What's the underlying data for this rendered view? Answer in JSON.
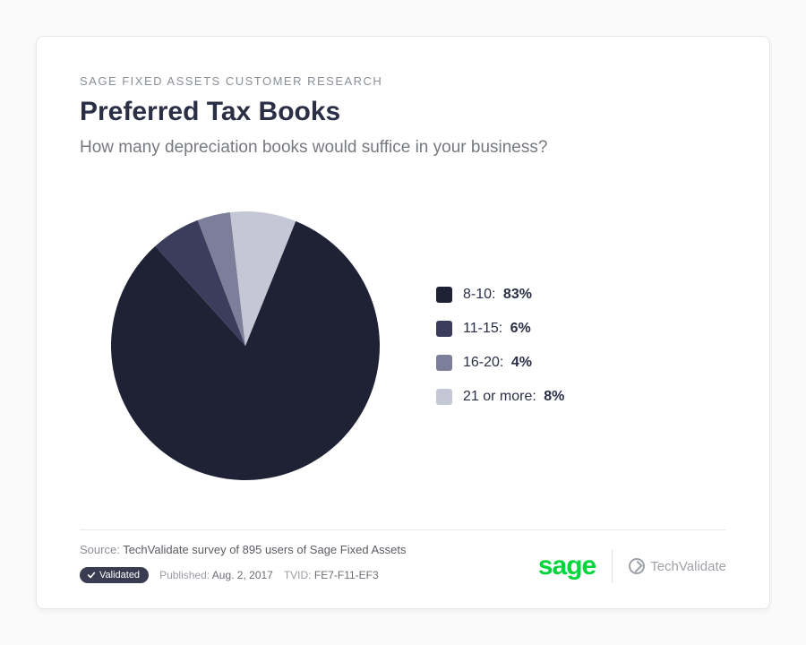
{
  "card": {
    "eyebrow": "SAGE FIXED ASSETS CUSTOMER RESEARCH",
    "title": "Preferred Tax Books",
    "subtitle": "How many depreciation books would suffice in your business?",
    "background_color": "#ffffff",
    "border_color": "#e6e6e6",
    "title_color": "#2b2f46",
    "subtitle_color": "#76797f",
    "eyebrow_color": "#8a8f97",
    "title_fontsize": 30,
    "subtitle_fontsize": 19
  },
  "chart": {
    "type": "pie",
    "radius": 150,
    "start_angle_deg": -68,
    "direction": "clockwise",
    "stroke": "none",
    "slices": [
      {
        "label": "8-10",
        "value": 83,
        "display": "83%",
        "color": "#1f2235"
      },
      {
        "label": "11-15",
        "value": 6,
        "display": "6%",
        "color": "#3a3d5c"
      },
      {
        "label": "16-20",
        "value": 4,
        "display": "4%",
        "color": "#7d7f9a"
      },
      {
        "label": "21 or more",
        "value": 8,
        "display": "8%",
        "color": "#c6c7d6"
      }
    ],
    "legend": {
      "swatch_size": 18,
      "swatch_radius": 3,
      "label_fontsize": 16,
      "label_color": "#2b2f46",
      "value_fontweight": 700
    }
  },
  "footer": {
    "source_prefix": "Source:",
    "source_text": "TechValidate survey of 895 users of Sage Fixed Assets",
    "validated_label": "Validated",
    "published_label": "Published:",
    "published_value": "Aug. 2, 2017",
    "tvid_label": "TVID:",
    "tvid_value": "FE7-F11-EF3",
    "sage_logo_text": "sage",
    "sage_logo_color": "#00d639",
    "techvalidate_text": "TechValidate",
    "pill_bg": "#3a3d52"
  }
}
